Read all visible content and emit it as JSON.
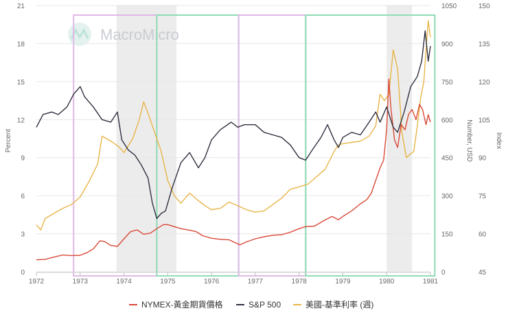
{
  "chart_data": {
    "type": "line",
    "title": "",
    "watermark": "MacroMicro",
    "x_range": [
      1972,
      1981
    ],
    "x_ticks": [
      "1972",
      "1973",
      "1974",
      "1975",
      "1976",
      "1977",
      "1978",
      "1979",
      "1980",
      "1981"
    ],
    "axes": {
      "left": {
        "label": "Percent",
        "range": [
          0,
          21
        ],
        "ticks": [
          "0",
          "3",
          "6",
          "9",
          "12",
          "15",
          "18",
          "21"
        ]
      },
      "right1": {
        "label": "Number, USD",
        "range": [
          0,
          1050
        ],
        "ticks": [
          "0",
          "150",
          "300",
          "450",
          "600",
          "750",
          "900",
          "1050"
        ]
      },
      "right2": {
        "label": "Index",
        "range": [
          45,
          150
        ],
        "ticks": [
          "45",
          "60",
          "75",
          "90",
          "105",
          "120",
          "135",
          "150"
        ]
      }
    },
    "recession_shading": [
      [
        1973.83,
        1975.2
      ],
      [
        1980.0,
        1980.58
      ]
    ],
    "highlight_boxes": [
      {
        "start": 1972.85,
        "end": 1974.75,
        "color": "#e0b8e6"
      },
      {
        "start": 1974.75,
        "end": 1976.62,
        "color": "#8fdcb5"
      },
      {
        "start": 1976.62,
        "end": 1978.15,
        "color": "#e0b8e6"
      },
      {
        "start": 1978.15,
        "end": 1981.1,
        "color": "#8fdcb5"
      }
    ],
    "series": [
      {
        "name": "NYMEX-黃金期貨價格",
        "axis": "right1",
        "color": "#d94836",
        "points": [
          [
            1972.0,
            47
          ],
          [
            1972.2,
            49
          ],
          [
            1972.4,
            58
          ],
          [
            1972.6,
            66
          ],
          [
            1972.8,
            64
          ],
          [
            1973.0,
            65
          ],
          [
            1973.15,
            75
          ],
          [
            1973.3,
            90
          ],
          [
            1973.45,
            122
          ],
          [
            1973.55,
            120
          ],
          [
            1973.7,
            104
          ],
          [
            1973.85,
            100
          ],
          [
            1974.0,
            130
          ],
          [
            1974.15,
            158
          ],
          [
            1974.3,
            165
          ],
          [
            1974.45,
            148
          ],
          [
            1974.6,
            152
          ],
          [
            1974.75,
            170
          ],
          [
            1974.9,
            186
          ],
          [
            1975.0,
            186
          ],
          [
            1975.15,
            178
          ],
          [
            1975.3,
            170
          ],
          [
            1975.5,
            164
          ],
          [
            1975.65,
            158
          ],
          [
            1975.8,
            142
          ],
          [
            1976.0,
            132
          ],
          [
            1976.2,
            128
          ],
          [
            1976.4,
            126
          ],
          [
            1976.55,
            114
          ],
          [
            1976.65,
            106
          ],
          [
            1976.8,
            118
          ],
          [
            1977.0,
            130
          ],
          [
            1977.2,
            138
          ],
          [
            1977.4,
            144
          ],
          [
            1977.6,
            146
          ],
          [
            1977.8,
            156
          ],
          [
            1978.0,
            170
          ],
          [
            1978.15,
            178
          ],
          [
            1978.35,
            180
          ],
          [
            1978.55,
            200
          ],
          [
            1978.75,
            218
          ],
          [
            1978.9,
            205
          ],
          [
            1979.0,
            218
          ],
          [
            1979.2,
            240
          ],
          [
            1979.4,
            268
          ],
          [
            1979.55,
            285
          ],
          [
            1979.65,
            310
          ],
          [
            1979.75,
            360
          ],
          [
            1979.85,
            410
          ],
          [
            1979.93,
            440
          ],
          [
            1980.0,
            560
          ],
          [
            1980.05,
            760
          ],
          [
            1980.1,
            640
          ],
          [
            1980.18,
            520
          ],
          [
            1980.25,
            490
          ],
          [
            1980.33,
            580
          ],
          [
            1980.42,
            560
          ],
          [
            1980.5,
            620
          ],
          [
            1980.58,
            640
          ],
          [
            1980.67,
            600
          ],
          [
            1980.75,
            660
          ],
          [
            1980.82,
            640
          ],
          [
            1980.9,
            580
          ],
          [
            1980.95,
            620
          ],
          [
            1981.0,
            590
          ]
        ]
      },
      {
        "name": "S&P 500",
        "axis": "right2",
        "color": "#2e2f3f",
        "points": [
          [
            1972.0,
            102
          ],
          [
            1972.15,
            107
          ],
          [
            1972.35,
            108
          ],
          [
            1972.5,
            107
          ],
          [
            1972.7,
            110
          ],
          [
            1972.85,
            115
          ],
          [
            1973.0,
            118
          ],
          [
            1973.1,
            114
          ],
          [
            1973.3,
            110
          ],
          [
            1973.5,
            105
          ],
          [
            1973.7,
            104
          ],
          [
            1973.85,
            108
          ],
          [
            1973.95,
            97
          ],
          [
            1974.1,
            93
          ],
          [
            1974.25,
            91
          ],
          [
            1974.4,
            87
          ],
          [
            1974.55,
            82
          ],
          [
            1974.65,
            72
          ],
          [
            1974.75,
            66
          ],
          [
            1974.85,
            68
          ],
          [
            1974.95,
            69
          ],
          [
            1975.1,
            78
          ],
          [
            1975.3,
            88
          ],
          [
            1975.5,
            92
          ],
          [
            1975.7,
            86
          ],
          [
            1975.85,
            90
          ],
          [
            1976.0,
            97
          ],
          [
            1976.2,
            101
          ],
          [
            1976.45,
            104
          ],
          [
            1976.6,
            102
          ],
          [
            1976.75,
            103
          ],
          [
            1977.0,
            103
          ],
          [
            1977.2,
            100
          ],
          [
            1977.4,
            99
          ],
          [
            1977.6,
            98
          ],
          [
            1977.8,
            95
          ],
          [
            1978.0,
            90
          ],
          [
            1978.15,
            89
          ],
          [
            1978.3,
            93
          ],
          [
            1978.5,
            98
          ],
          [
            1978.65,
            103
          ],
          [
            1978.8,
            97
          ],
          [
            1978.9,
            94
          ],
          [
            1979.0,
            98
          ],
          [
            1979.2,
            100
          ],
          [
            1979.4,
            99
          ],
          [
            1979.6,
            104
          ],
          [
            1979.75,
            108
          ],
          [
            1979.85,
            104
          ],
          [
            1980.0,
            110
          ],
          [
            1980.15,
            102
          ],
          [
            1980.25,
            100
          ],
          [
            1980.4,
            108
          ],
          [
            1980.55,
            118
          ],
          [
            1980.7,
            122
          ],
          [
            1980.8,
            128
          ],
          [
            1980.88,
            140
          ],
          [
            1980.95,
            128
          ],
          [
            1981.0,
            134
          ]
        ]
      },
      {
        "name": "美國-基準利率 (週)",
        "axis": "left",
        "color": "#e8b445",
        "points": [
          [
            1972.0,
            3.7
          ],
          [
            1972.1,
            3.3
          ],
          [
            1972.2,
            4.2
          ],
          [
            1972.4,
            4.6
          ],
          [
            1972.6,
            5.0
          ],
          [
            1972.8,
            5.3
          ],
          [
            1973.0,
            5.9
          ],
          [
            1973.2,
            7.1
          ],
          [
            1973.4,
            8.5
          ],
          [
            1973.5,
            10.7
          ],
          [
            1973.6,
            10.5
          ],
          [
            1973.75,
            10.2
          ],
          [
            1973.9,
            9.8
          ],
          [
            1974.0,
            9.4
          ],
          [
            1974.2,
            10.5
          ],
          [
            1974.35,
            12.0
          ],
          [
            1974.45,
            13.4
          ],
          [
            1974.55,
            12.5
          ],
          [
            1974.7,
            11.0
          ],
          [
            1974.85,
            9.5
          ],
          [
            1975.0,
            7.2
          ],
          [
            1975.15,
            6.0
          ],
          [
            1975.3,
            5.4
          ],
          [
            1975.5,
            6.2
          ],
          [
            1975.7,
            5.6
          ],
          [
            1975.9,
            5.1
          ],
          [
            1976.0,
            4.9
          ],
          [
            1976.2,
            5.0
          ],
          [
            1976.4,
            5.5
          ],
          [
            1976.6,
            5.2
          ],
          [
            1976.8,
            4.9
          ],
          [
            1977.0,
            4.7
          ],
          [
            1977.2,
            4.8
          ],
          [
            1977.4,
            5.3
          ],
          [
            1977.6,
            5.8
          ],
          [
            1977.8,
            6.5
          ],
          [
            1978.0,
            6.7
          ],
          [
            1978.2,
            6.9
          ],
          [
            1978.4,
            7.5
          ],
          [
            1978.6,
            8.1
          ],
          [
            1978.8,
            9.5
          ],
          [
            1978.9,
            10.0
          ],
          [
            1979.0,
            10.1
          ],
          [
            1979.2,
            10.2
          ],
          [
            1979.4,
            10.3
          ],
          [
            1979.6,
            10.7
          ],
          [
            1979.75,
            11.5
          ],
          [
            1979.85,
            14.0
          ],
          [
            1979.95,
            13.5
          ],
          [
            1980.05,
            14.0
          ],
          [
            1980.15,
            17.5
          ],
          [
            1980.25,
            16.0
          ],
          [
            1980.35,
            11.0
          ],
          [
            1980.45,
            9.0
          ],
          [
            1980.55,
            9.3
          ],
          [
            1980.62,
            9.5
          ],
          [
            1980.7,
            11.5
          ],
          [
            1980.78,
            13.8
          ],
          [
            1980.85,
            15.0
          ],
          [
            1980.9,
            17.5
          ],
          [
            1980.95,
            19.8
          ],
          [
            1981.0,
            18.5
          ]
        ]
      }
    ],
    "legend": {
      "placement": "bottom-center",
      "items": [
        "NYMEX-黃金期貨價格",
        "S&P 500",
        "美國-基準利率 (週)"
      ]
    }
  }
}
